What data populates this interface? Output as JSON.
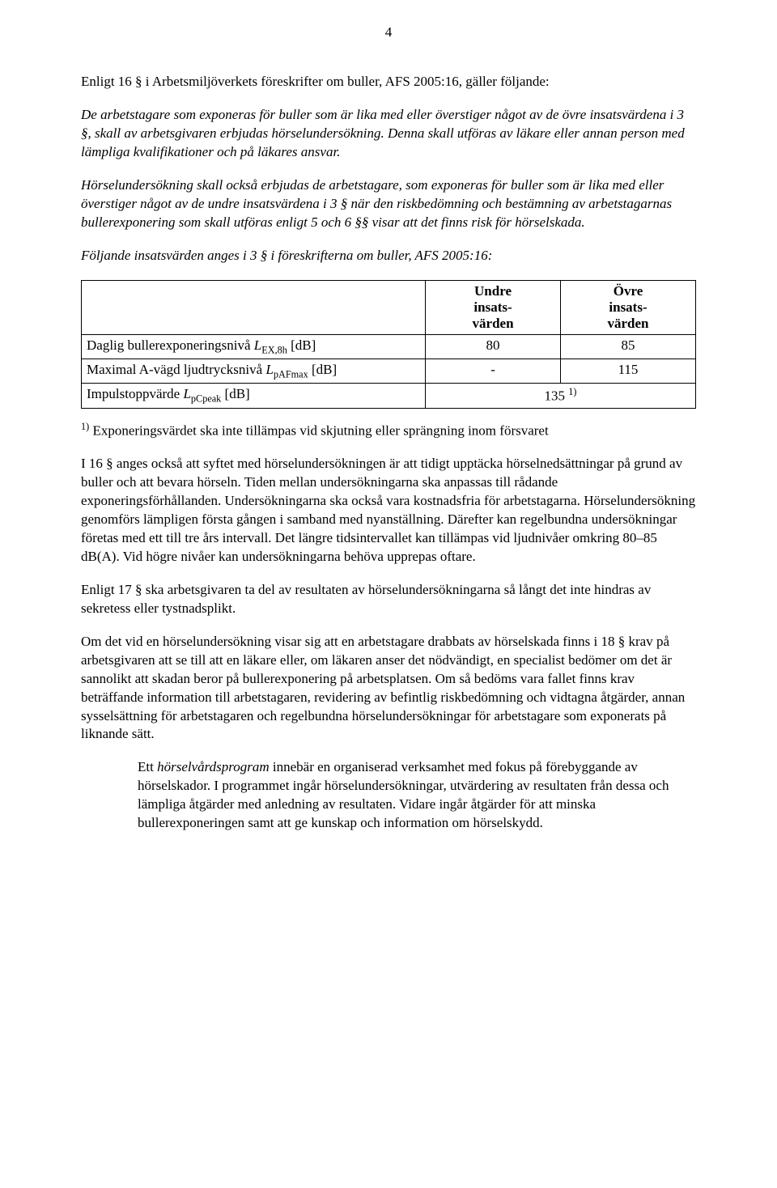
{
  "page_number": "4",
  "intro_line": "Enligt 16 § i Arbetsmiljöverkets föreskrifter om buller, AFS 2005:16, gäller följande:",
  "italic_para_1": "De arbetstagare som exponeras för buller som är lika med eller överstiger något av de övre insatsvärdena i 3 §, skall av arbetsgivaren erbjudas hörselundersökning. Denna skall utföras av läkare eller annan person med lämpliga kvalifikationer och på läkares ansvar.",
  "italic_para_2": "Hörselundersökning skall också erbjudas de arbetstagare, som exponeras för buller som är lika med eller överstiger något av de undre insatsvärdena i 3 § när den riskbedömning och bestämning av arbetstagarnas bullerexponering som skall utföras enligt 5 och 6 §§ visar att det finns risk för hörselskada.",
  "table_intro": "Följande insatsvärden anges i 3 § i föreskrifterna om buller, AFS 2005:16:",
  "table": {
    "header_undre_1": "Undre",
    "header_undre_2": "insats-",
    "header_undre_3": "värden",
    "header_ovre_1": "Övre",
    "header_ovre_2": "insats-",
    "header_ovre_3": "värden",
    "row1_label_pre": "Daglig bullerexponeringsnivå ",
    "row1_sym": "L",
    "row1_sub": "EX",
    "row1_sub2": ",8h",
    "row1_unit": " [dB]",
    "row1_undre": "80",
    "row1_ovre": "85",
    "row2_label_pre": "Maximal A-vägd ljudtrycksnivå ",
    "row2_sym": "L",
    "row2_sub": "pAFmax",
    "row2_unit": " [dB]",
    "row2_undre": "-",
    "row2_ovre": "115",
    "row3_label_pre": "Impulstoppvärde ",
    "row3_sym": "L",
    "row3_sub": "pCpeak",
    "row3_unit": " [dB]",
    "row3_val": "135 ",
    "row3_sup": "1)"
  },
  "footnote_sup": "1)",
  "footnote_text": " Exponeringsvärdet ska inte tillämpas vid skjutning eller sprängning inom försvaret",
  "para_16": "I 16 § anges också att syftet med hörselundersökningen är att tidigt upptäcka hörselnedsättningar på grund av buller och att bevara hörseln. Tiden mellan undersökningarna ska anpassas till rådande exponeringsförhållanden. Undersökningarna ska också vara kostnadsfria för arbetstagarna. Hörselundersökning genomförs lämpligen första gången i samband med nyanställning. Därefter kan regelbundna undersökningar företas med ett till tre års intervall. Det längre tidsintervallet kan tillämpas vid ljudnivåer omkring 80–85 dB(A). Vid högre nivåer kan undersökningarna behöva upprepas oftare.",
  "para_17": "Enligt 17 § ska arbetsgivaren ta del av resultaten av hörselundersökningarna så långt det inte hindras av sekretess eller tystnadsplikt.",
  "para_18": "Om det vid en hörselundersökning visar sig att en arbetstagare drabbats av hörselskada finns i 18 § krav på arbetsgivaren att se till att en läkare eller, om läkaren anser det nödvändigt, en specialist bedömer om det är sannolikt att skadan beror på bullerexponering på arbetsplatsen. Om så bedöms vara fallet finns krav beträffande information till arbetstagaren, revidering av befintlig riskbedömning och vidtagna åtgärder, annan sysselsättning för arbetstagaren och regelbundna hörselundersökningar för arbetstagare som exponerats på liknande sätt.",
  "indent_term": "hörselvårdsprogram",
  "indent_pre": "Ett ",
  "indent_text": " innebär en organiserad verksamhet med fokus på förebyggande av hörselskador. I programmet ingår hörselundersökningar, utvärdering av resultaten från dessa och lämpliga åtgärder med anledning av resultaten. Vidare ingår åtgärder för att minska bullerexponeringen samt att ge kunskap och information om hörselskydd."
}
